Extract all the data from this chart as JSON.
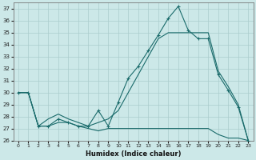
{
  "bg_color": "#cce8e8",
  "grid_color": "#aacccc",
  "line_color": "#1a6b6b",
  "xlabel": "Humidex (Indice chaleur)",
  "ylim": [
    26,
    37.5
  ],
  "xlim": [
    -0.5,
    23.5
  ],
  "yticks": [
    26,
    27,
    28,
    29,
    30,
    31,
    32,
    33,
    34,
    35,
    36,
    37
  ],
  "xticks": [
    0,
    1,
    2,
    3,
    4,
    5,
    6,
    7,
    8,
    9,
    10,
    11,
    12,
    13,
    14,
    15,
    16,
    17,
    18,
    19,
    20,
    21,
    22,
    23
  ],
  "line_top_x": [
    0,
    1,
    2,
    3,
    4,
    5,
    6,
    7,
    8,
    9,
    10,
    11,
    12,
    13,
    14,
    15,
    16,
    17,
    18,
    19,
    20,
    21,
    22,
    23
  ],
  "line_top_y": [
    30,
    30,
    27.2,
    27.2,
    27.8,
    27.5,
    27.2,
    27.2,
    28.5,
    27.2,
    29.2,
    31.2,
    32.2,
    33.5,
    34.8,
    36.2,
    37.2,
    35.2,
    34.5,
    34.5,
    31.5,
    30.2,
    28.8,
    26.0
  ],
  "line_mid_x": [
    0,
    1,
    2,
    3,
    4,
    5,
    6,
    7,
    8,
    9,
    10,
    11,
    12,
    13,
    14,
    15,
    16,
    17,
    18,
    19,
    20,
    21,
    22,
    23
  ],
  "line_mid_y": [
    30,
    30,
    27.2,
    27.8,
    28.2,
    27.8,
    27.5,
    27.2,
    27.5,
    27.8,
    28.5,
    30.0,
    31.5,
    33.0,
    34.5,
    35.0,
    35.0,
    35.0,
    35.0,
    35.0,
    31.8,
    30.5,
    29.0,
    26.0
  ],
  "line_bot_x": [
    0,
    1,
    2,
    3,
    4,
    5,
    6,
    7,
    8,
    9,
    10,
    11,
    12,
    13,
    14,
    15,
    16,
    17,
    18,
    19,
    20,
    21,
    22,
    23
  ],
  "line_bot_y": [
    30,
    30,
    27.2,
    27.2,
    27.5,
    27.5,
    27.2,
    27.0,
    26.8,
    27.0,
    27.0,
    27.0,
    27.0,
    27.0,
    27.0,
    27.0,
    27.0,
    27.0,
    27.0,
    27.0,
    26.5,
    26.2,
    26.2,
    26.0
  ]
}
